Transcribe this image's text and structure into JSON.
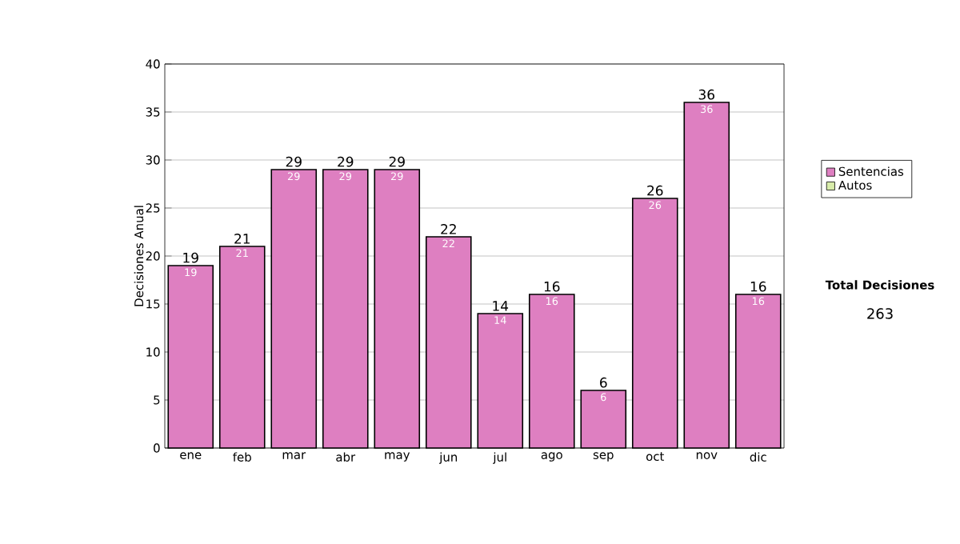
{
  "chart_data": {
    "type": "bar",
    "stacked": true,
    "ylabel": "Decisiones Anual",
    "categories": [
      "ene",
      "feb",
      "mar",
      "abr",
      "may",
      "jun",
      "jul",
      "ago",
      "sep",
      "oct",
      "nov",
      "dic"
    ],
    "series": [
      {
        "name": "Sentencias",
        "color": "#de7fc1",
        "values": [
          19,
          21,
          29,
          29,
          29,
          22,
          14,
          16,
          6,
          26,
          36,
          16
        ]
      },
      {
        "name": "Autos",
        "color": "#d8ecaa",
        "values": [
          null,
          null,
          null,
          null,
          null,
          null,
          null,
          null,
          null,
          null,
          null,
          null
        ]
      }
    ],
    "totals": [
      "19",
      "21",
      "29",
      "29",
      "29",
      "22",
      "14",
      "16",
      "6",
      "26",
      "36",
      "16"
    ],
    "data_labels": true,
    "ylim": [
      0,
      40
    ],
    "yticks": [
      0,
      5,
      10,
      15,
      20,
      25,
      30,
      35,
      40
    ],
    "grid": "y",
    "legend": "right",
    "annotations": [
      "Total Decisiones",
      "263"
    ]
  }
}
